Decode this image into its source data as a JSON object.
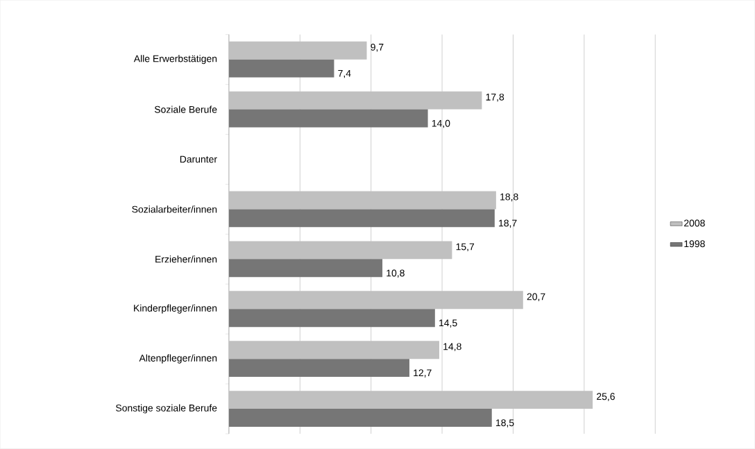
{
  "chart_data": {
    "type": "bar",
    "orientation": "horizontal",
    "categories": [
      "Alle Erwerbstätigen",
      "Soziale Berufe",
      "Darunter",
      "Sozialarbeiter/innen",
      "Erzieher/innen",
      "Kinderpfleger/innen",
      "Altenpfleger/innen",
      "Sonstige soziale Berufe"
    ],
    "series": [
      {
        "name": "2008",
        "color": "#c0c0c0",
        "values": [
          9.7,
          17.8,
          null,
          18.8,
          15.7,
          20.7,
          14.8,
          25.6
        ],
        "value_labels": [
          "9,7",
          "17,8",
          null,
          "18,8",
          "15,7",
          "20,7",
          "14,8",
          "25,6"
        ]
      },
      {
        "name": "1998",
        "color": "#767676",
        "values": [
          7.4,
          14.0,
          null,
          18.7,
          10.8,
          14.5,
          12.7,
          18.5
        ],
        "value_labels": [
          "7,4",
          "14,0",
          null,
          "18,7",
          "10,8",
          "14,5",
          "12,7",
          "18,5"
        ]
      }
    ],
    "xlim": [
      0,
      30
    ],
    "xticks": [
      {
        "value": 0,
        "label": null
      },
      {
        "value": 5,
        "label": null
      },
      {
        "value": 10,
        "label": null
      },
      {
        "value": 15,
        "label": null
      },
      {
        "value": 20,
        "label": null
      },
      {
        "value": 25,
        "label": null
      },
      {
        "value": 30,
        "label": null
      }
    ],
    "tick_labels": "y",
    "grid": "x",
    "legend": "right"
  }
}
